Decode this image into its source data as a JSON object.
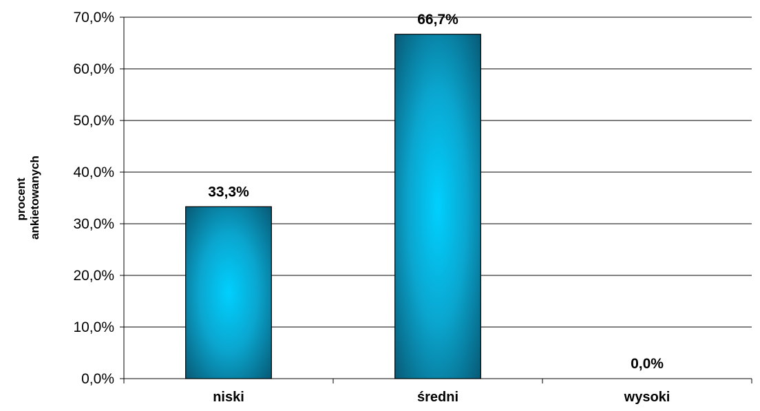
{
  "chart_data": {
    "type": "bar",
    "categories": [
      "niski",
      "średni",
      "wysoki"
    ],
    "values": [
      33.3,
      66.7,
      0.0
    ],
    "data_labels": [
      "33,3%",
      "66,7%",
      "0,0%"
    ],
    "ylabel": [
      "procent",
      "ankietowanych"
    ],
    "ylim": [
      0,
      70
    ],
    "yticks": [
      0,
      10,
      20,
      30,
      40,
      50,
      60,
      70
    ],
    "ytick_labels": [
      "0,0%",
      "10,0%",
      "20,0%",
      "30,0%",
      "40,0%",
      "50,0%",
      "60,0%",
      "70,0%"
    ],
    "grid": true,
    "legend": "none",
    "colors": {
      "bar_edge": "#0a6d8a",
      "bar_mid": "#00ccff",
      "bar_dark": "#08506a"
    }
  }
}
